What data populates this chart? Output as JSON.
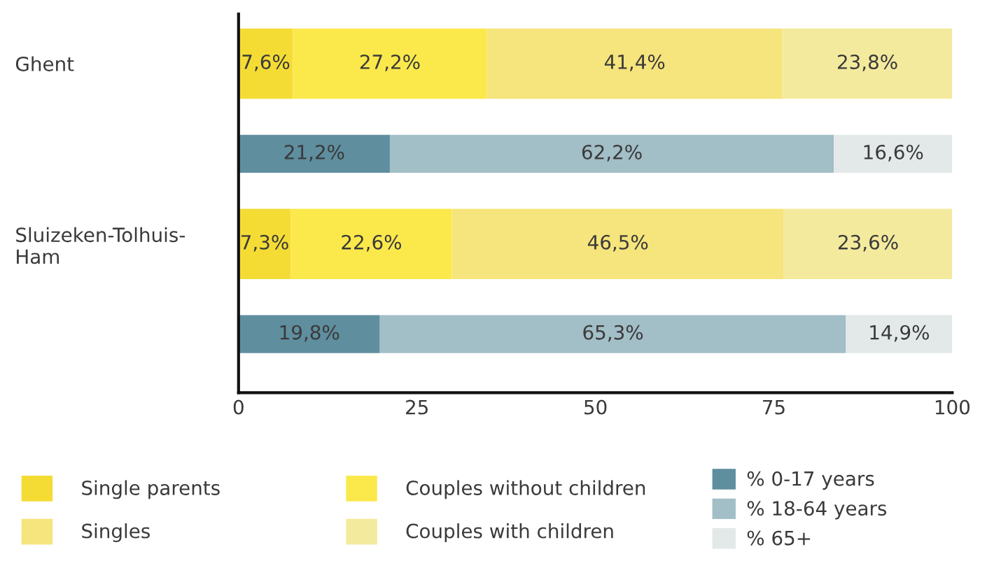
{
  "chart_data": {
    "type": "bar",
    "orientation": "horizontal",
    "stacked": true,
    "categories": [
      "Ghent",
      null,
      "Sluizeken-Tolhuis-Ham",
      null
    ],
    "series": [
      {
        "name": "Single parents",
        "color": "#f4dc35",
        "values": [
          7.6,
          null,
          7.3,
          null
        ],
        "value_labels": [
          "7,6%",
          null,
          "7,3%",
          null
        ]
      },
      {
        "name": "Couples without children",
        "color": "#fbe94c",
        "values": [
          27.2,
          null,
          22.6,
          null
        ],
        "value_labels": [
          "27,2%",
          null,
          "22,6%",
          null
        ]
      },
      {
        "name": "Singles",
        "color": "#f6e47c",
        "values": [
          41.4,
          null,
          46.5,
          null
        ],
        "value_labels": [
          "41,4%",
          null,
          "46,5%",
          null
        ]
      },
      {
        "name": "Couples with children",
        "color": "#f4ea9e",
        "values": [
          23.8,
          null,
          23.6,
          null
        ],
        "value_labels": [
          "23,8%",
          null,
          "23,6%",
          null
        ]
      },
      {
        "name": "% 0-17 years",
        "color": "#5f8e9f",
        "values": [
          null,
          21.2,
          null,
          19.8
        ],
        "value_labels": [
          null,
          "21,2%",
          null,
          "19,8%"
        ]
      },
      {
        "name": "% 18-64 years",
        "color": "#a2bec7",
        "values": [
          null,
          62.2,
          null,
          65.3
        ],
        "value_labels": [
          null,
          "62,2%",
          null,
          "65,3%"
        ]
      },
      {
        "name": "% 65+",
        "color": "#e3e9e8",
        "values": [
          null,
          16.6,
          null,
          14.9
        ],
        "value_labels": [
          null,
          "16,6%",
          null,
          "14,9%"
        ]
      }
    ],
    "xlim": [
      0,
      100
    ],
    "xticks": [
      0,
      25,
      50,
      75,
      100
    ],
    "grid": false,
    "legend": "bottom"
  }
}
